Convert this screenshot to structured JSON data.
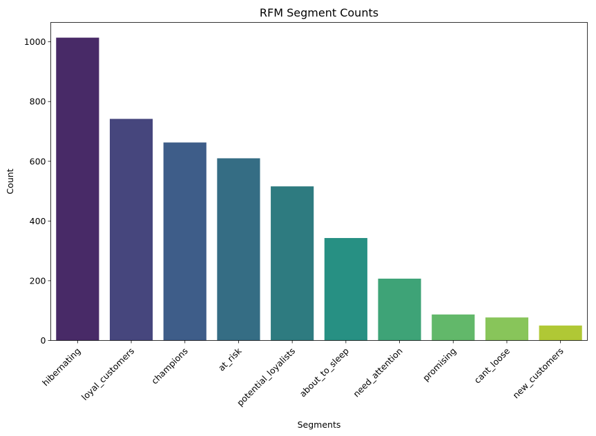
{
  "chart_data": {
    "type": "bar",
    "title": "RFM Segment Counts",
    "xlabel": "Segments",
    "ylabel": "Count",
    "categories": [
      "hibernating",
      "loyal_customers",
      "champions",
      "at_risk",
      "potential_loyalists",
      "about_to_sleep",
      "need_attention",
      "promising",
      "cant_loose",
      "new_customers"
    ],
    "values": [
      1014,
      742,
      663,
      610,
      516,
      343,
      207,
      87,
      77,
      50
    ],
    "colors": [
      "#482a67",
      "#46467d",
      "#3e5d89",
      "#356d84",
      "#2e7b80",
      "#279083",
      "#3ea377",
      "#62b86a",
      "#88c55a",
      "#b0c835"
    ],
    "ylim": [
      0,
      1065
    ],
    "yticks": [
      0,
      200,
      400,
      600,
      800,
      1000
    ],
    "grid": false,
    "legend": "none"
  }
}
